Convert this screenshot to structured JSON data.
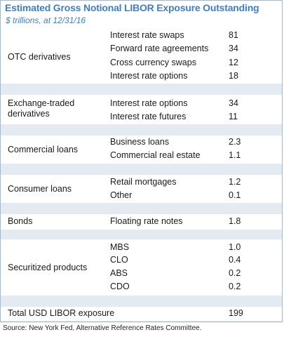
{
  "title": "Estimated Gross Notional LIBOR Exposure Outstanding",
  "subtitle": "$ trillions, at 12/31/16",
  "groups": [
    {
      "label": "OTC derivatives",
      "rows": [
        {
          "label": "Interest rate swaps",
          "value": "81"
        },
        {
          "label": "Forward rate agreements",
          "value": "34"
        },
        {
          "label": "Cross currency swaps",
          "value": "12"
        },
        {
          "label": "Interest rate options",
          "value": "18"
        }
      ]
    },
    {
      "label": "Exchange-traded derivatives",
      "rows": [
        {
          "label": "Interest rate options",
          "value": "34"
        },
        {
          "label": "Interest rate futures",
          "value": "11"
        }
      ]
    },
    {
      "label": "Commercial loans",
      "rows": [
        {
          "label": "Business loans",
          "value": "2.3"
        },
        {
          "label": "Commercial real estate",
          "value": "1.1"
        }
      ]
    },
    {
      "label": "Consumer loans",
      "rows": [
        {
          "label": "Retail mortgages",
          "value": "1.2"
        },
        {
          "label": "Other",
          "value": "0.1"
        }
      ]
    },
    {
      "label": "Bonds",
      "rows": [
        {
          "label": "Floating rate notes",
          "value": "1.8"
        }
      ]
    },
    {
      "label": "Securitized products",
      "rows": [
        {
          "label": "MBS",
          "value": "1.0"
        },
        {
          "label": "CLO",
          "value": "0.4"
        },
        {
          "label": "ABS",
          "value": "0.2"
        },
        {
          "label": "CDO",
          "value": "0.2"
        }
      ]
    },
    {
      "label": "Total USD LIBOR exposure",
      "rows": [
        {
          "label": "",
          "value": "199"
        }
      ]
    }
  ],
  "source": "Source: New York Fed, Alternative Reference Rates Committee.",
  "colors": {
    "title": "#3f7fc1",
    "band": "#e4eaf2",
    "row_bg": "#ffffff"
  }
}
